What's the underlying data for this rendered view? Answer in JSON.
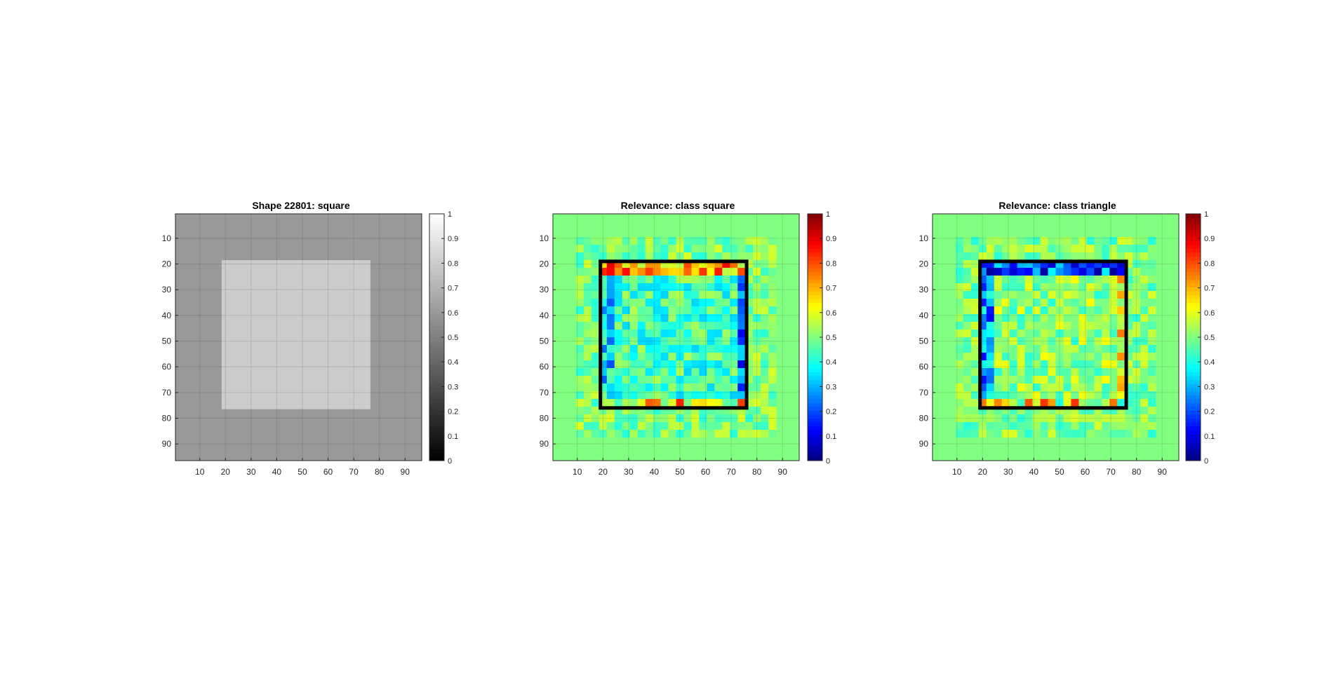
{
  "chart_data": [
    {
      "type": "heatmap",
      "title": "Shape 22801: square",
      "colormap": "gray",
      "x_ticks": [
        10,
        20,
        30,
        40,
        50,
        60,
        70,
        80,
        90
      ],
      "y_ticks": [
        10,
        20,
        30,
        40,
        50,
        60,
        70,
        80,
        90
      ],
      "xlim": [
        0.5,
        96.5
      ],
      "ylim": [
        0.5,
        96.5
      ],
      "grid": true,
      "clim": [
        0,
        1
      ],
      "colorbar_ticks": [
        "0",
        "0.1",
        "0.2",
        "0.3",
        "0.4",
        "0.5",
        "0.6",
        "0.7",
        "0.8",
        "0.9",
        "1"
      ],
      "background_value": 0.6,
      "shape_value": 0.8,
      "shape": "square",
      "square_extent": {
        "x": [
          19,
          76
        ],
        "y": [
          19,
          76
        ]
      }
    },
    {
      "type": "heatmap",
      "title": "Relevance: class square",
      "colormap": "jet",
      "x_ticks": [
        10,
        20,
        30,
        40,
        50,
        60,
        70,
        80,
        90
      ],
      "y_ticks": [
        10,
        20,
        30,
        40,
        50,
        60,
        70,
        80,
        90
      ],
      "xlim": [
        0.5,
        96.5
      ],
      "ylim": [
        0.5,
        96.5
      ],
      "grid": true,
      "clim": [
        0,
        1
      ],
      "colorbar_ticks": [
        "0",
        "0.1",
        "0.2",
        "0.3",
        "0.4",
        "0.5",
        "0.6",
        "0.7",
        "0.8",
        "0.9",
        "1"
      ],
      "cell_size": 3,
      "background_value": 0.5,
      "outline": {
        "x": [
          19,
          76
        ],
        "y": [
          19,
          76
        ]
      },
      "patterns": {
        "top_edge": 0.72,
        "bottom_edge": 0.62,
        "left_edge": 0.35,
        "right_edge": 0.22,
        "interior": 0.44
      }
    },
    {
      "type": "heatmap",
      "title": "Relevance: class triangle",
      "colormap": "jet",
      "x_ticks": [
        10,
        20,
        30,
        40,
        50,
        60,
        70,
        80,
        90
      ],
      "y_ticks": [
        10,
        20,
        30,
        40,
        50,
        60,
        70,
        80,
        90
      ],
      "xlim": [
        0.5,
        96.5
      ],
      "ylim": [
        0.5,
        96.5
      ],
      "grid": true,
      "clim": [
        0,
        1
      ],
      "colorbar_ticks": [
        "0",
        "0.1",
        "0.2",
        "0.3",
        "0.4",
        "0.5",
        "0.6",
        "0.7",
        "0.8",
        "0.9",
        "1"
      ],
      "cell_size": 3,
      "background_value": 0.5,
      "outline": {
        "x": [
          19,
          76
        ],
        "y": [
          19,
          76
        ]
      },
      "patterns": {
        "top_edge": 0.2,
        "bottom_edge": 0.62,
        "left_edge": 0.28,
        "right_edge": 0.62,
        "interior": 0.52
      }
    }
  ]
}
